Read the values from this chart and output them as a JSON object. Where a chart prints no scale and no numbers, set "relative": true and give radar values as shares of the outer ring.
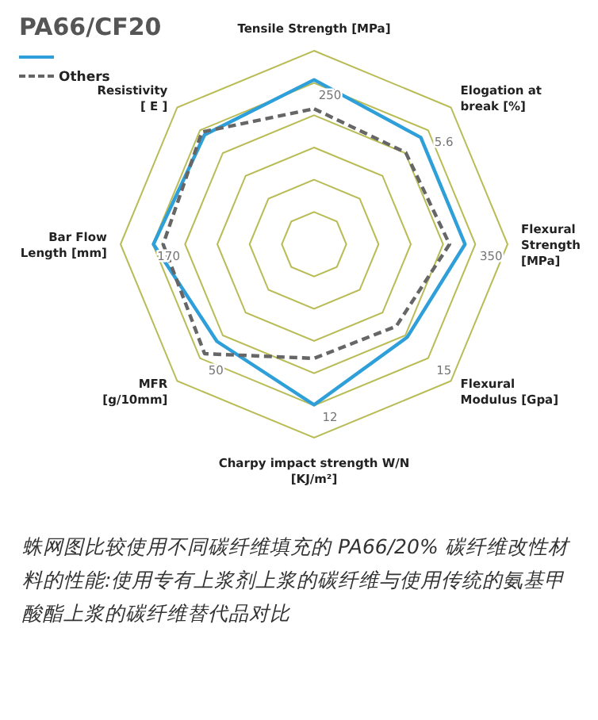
{
  "chart_data": {
    "type": "radar",
    "title": "PA66/CF20",
    "relative": true,
    "grid": true,
    "legend": "top left",
    "categories": [
      "Tensile Strength [MPa]",
      "Elogation at\nbreak [%]",
      "Flexural\nStrength\n[MPa]",
      "Flexural\nModulus [Gpa]",
      "Charpy impact strength  W/N\n[KJ/m²]",
      "MFR\n[g/10mm]",
      "Bar Flow\nLength [mm]",
      "Resistivity\n[ E ]"
    ],
    "series": [
      {
        "color": "#2e9fd8",
        "line_style": "solid",
        "values": [
          0.85,
          0.78,
          0.78,
          0.68,
          0.83,
          0.71,
          0.83,
          0.8
        ]
      },
      {
        "name": "Others",
        "color": "#666666",
        "line_style": "dashed",
        "values": [
          0.7,
          0.67,
          0.7,
          0.6,
          0.59,
          0.8,
          0.78,
          0.82
        ]
      }
    ],
    "annotations": [
      {
        "text": "250",
        "x": "Tensile Strength [MPa]"
      },
      {
        "text": "5.6",
        "x": "Elogation at\nbreak [%]"
      },
      {
        "text": "350",
        "x": "Flexural\nStrength\n[MPa]"
      },
      {
        "text": "15",
        "x": "Flexural\nModulus [Gpa]"
      },
      {
        "text": "12",
        "x": "Charpy impact strength  W/N\n[KJ/m²]"
      },
      {
        "text": "50",
        "x": "MFR\n[g/10mm]"
      },
      {
        "text": "170",
        "x": "Bar Flow\nLength [mm]"
      },
      "蛛网图比较使用不同碳纤维填充的 PA66/20% 碳纤维改性材料的性能:使用专有上浆剂上浆的碳纤维与使用传统的氨基甲酸酯上浆的碳纤维替代品对比"
    ]
  }
}
